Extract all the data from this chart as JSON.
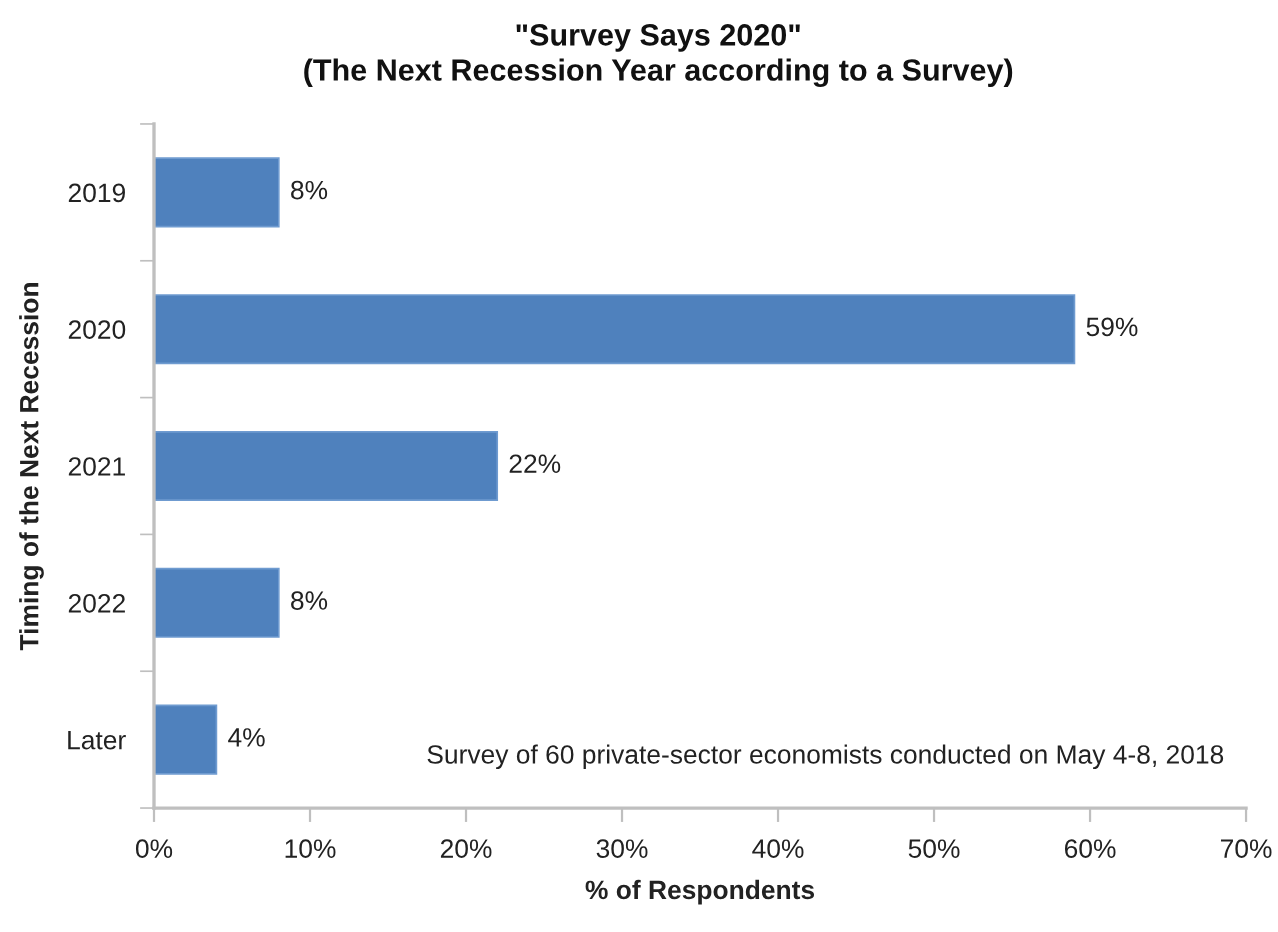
{
  "chart_data": {
    "type": "bar",
    "orientation": "horizontal",
    "title": "\"Survey Says 2020\"\n(The Next Recession Year according to a Survey)",
    "categories": [
      "2019",
      "2020",
      "2021",
      "2022",
      "Later"
    ],
    "values": [
      8,
      59,
      22,
      8,
      4
    ],
    "value_labels": [
      "8%",
      "59%",
      "22%",
      "8%",
      "4%"
    ],
    "color": "#4f81bd",
    "xlim": [
      0,
      70
    ],
    "xticks": [
      {
        "value": 0,
        "label": "0%"
      },
      {
        "value": 10,
        "label": "10%"
      },
      {
        "value": 20,
        "label": "20%"
      },
      {
        "value": 30,
        "label": "30%"
      },
      {
        "value": 40,
        "label": "40%"
      },
      {
        "value": 50,
        "label": "50%"
      },
      {
        "value": 60,
        "label": "60%"
      },
      {
        "value": 70,
        "label": "70%"
      }
    ],
    "xlabel": "% of Respondents",
    "ylabel": "Timing of the Next Recession",
    "annotations": [
      "Survey of 60 private-sector economists conducted on May 4-8, 2018"
    ],
    "grid": false,
    "legend": false
  }
}
